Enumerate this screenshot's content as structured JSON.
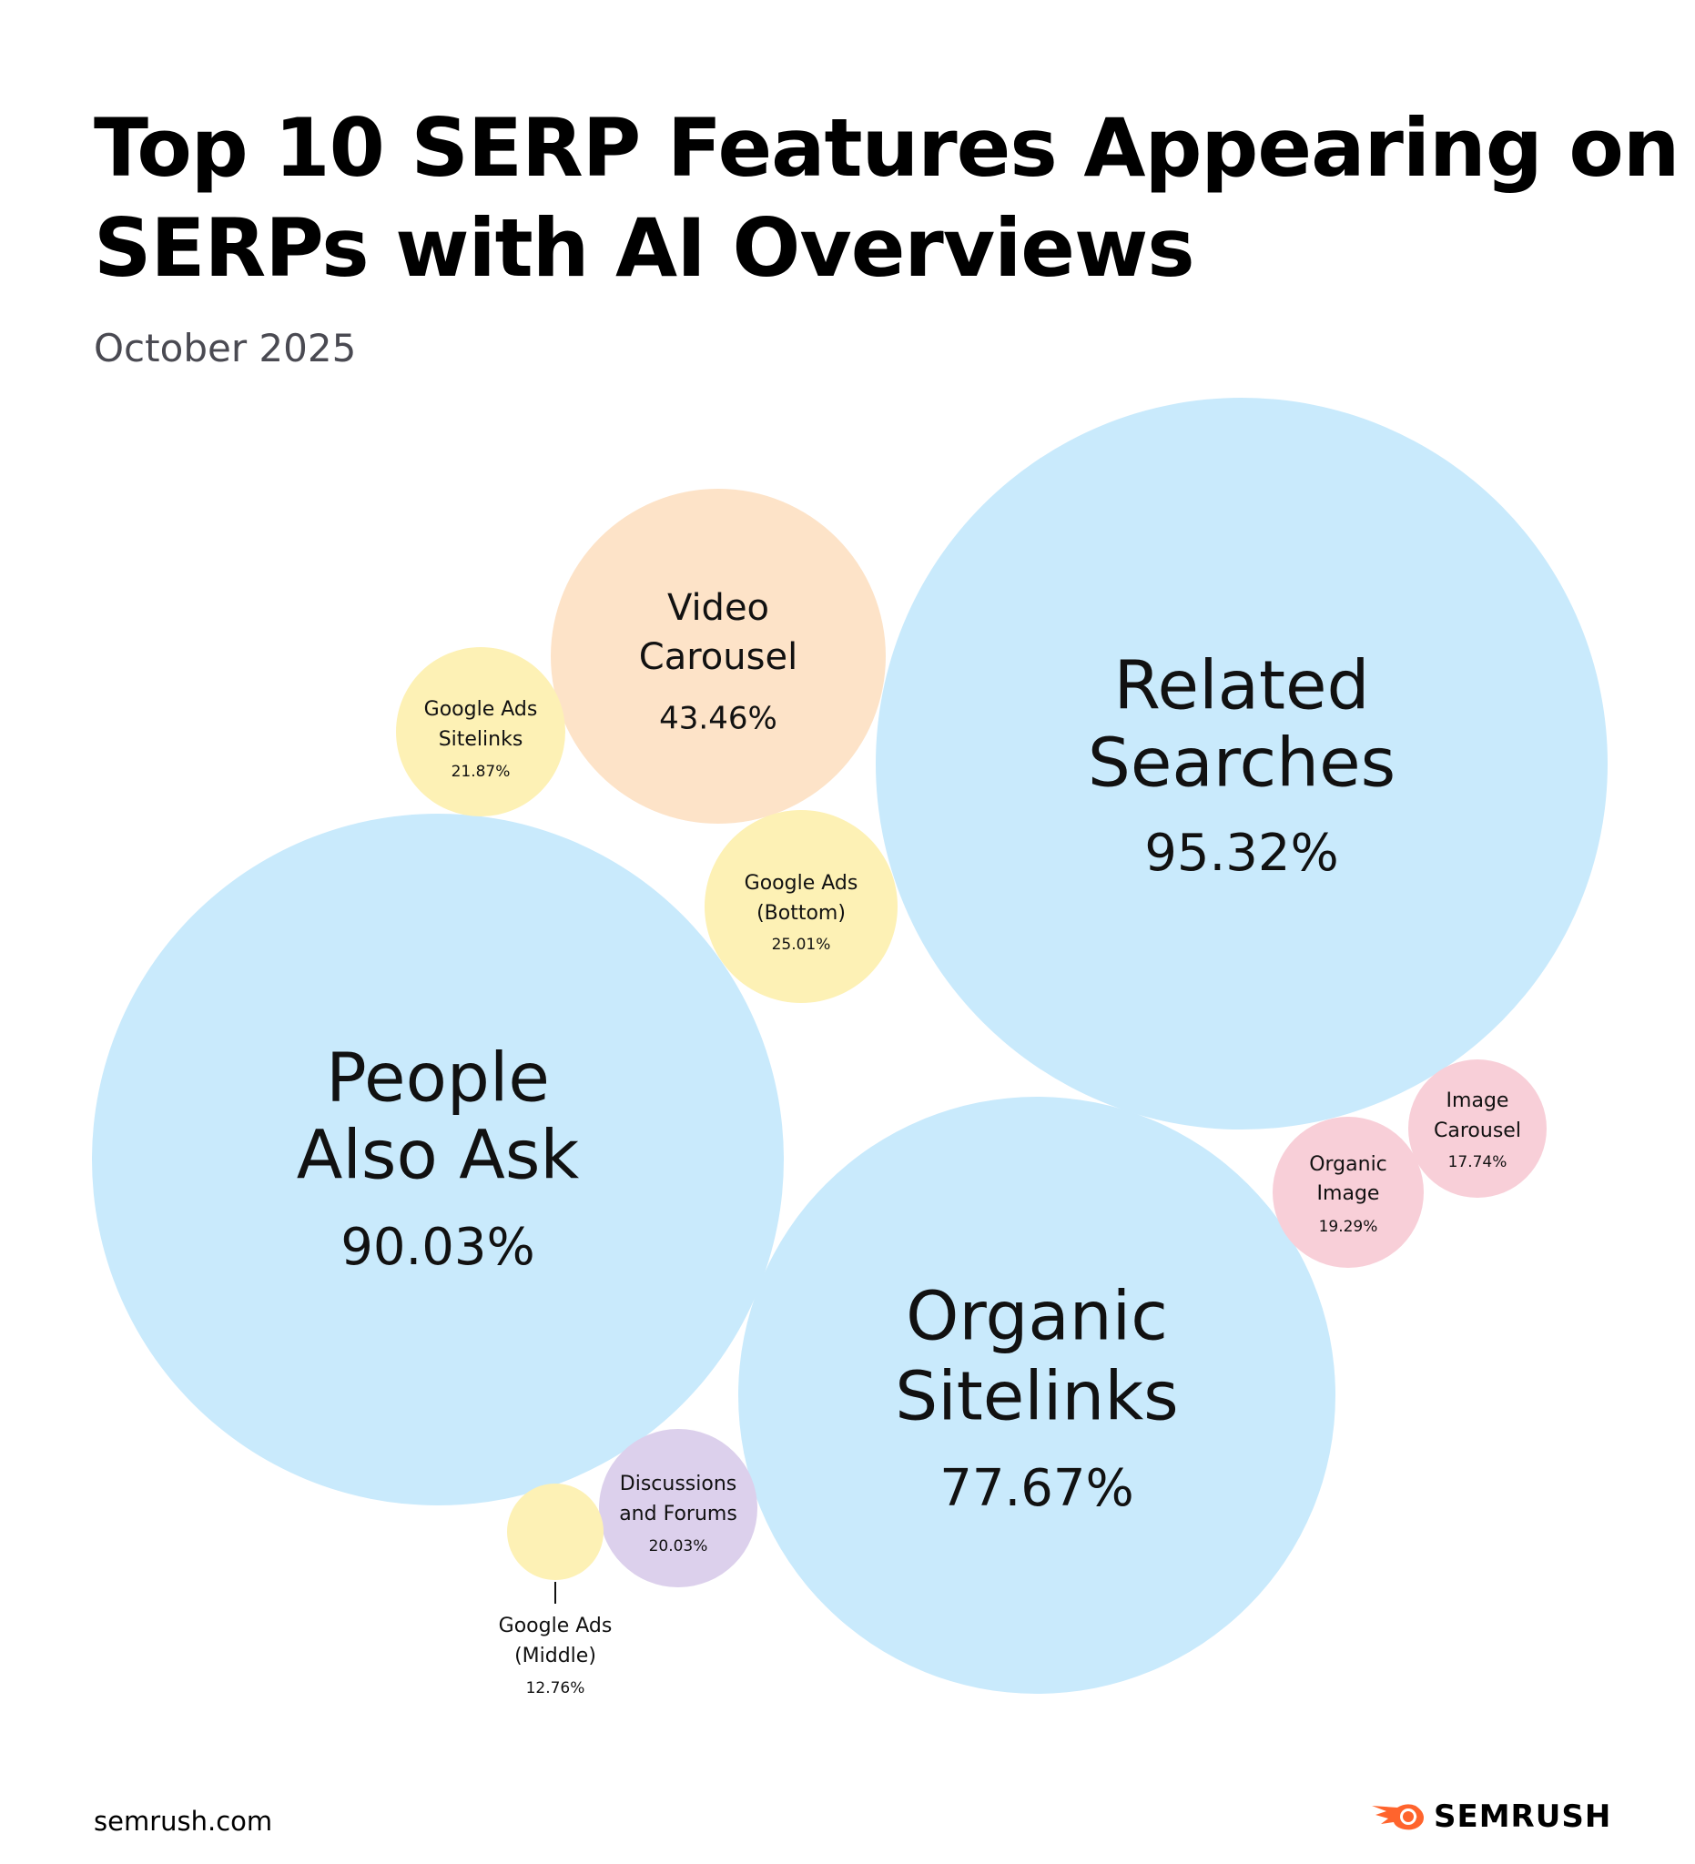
{
  "chart_data": {
    "type": "bubble",
    "title": "Top 10 SERP Features Appearing on SERPs with AI Overviews",
    "subtitle": "October 2025",
    "unit": "%",
    "series": [
      {
        "label": [
          "Related",
          "Searches"
        ],
        "value": 95.32,
        "display": "95.32%",
        "color": "#c9eafc"
      },
      {
        "label": [
          "People",
          "Also Ask"
        ],
        "value": 90.03,
        "display": "90.03%",
        "color": "#c9eafc"
      },
      {
        "label": [
          "Organic",
          "Sitelinks"
        ],
        "value": 77.67,
        "display": "77.67%",
        "color": "#c9eafc"
      },
      {
        "label": [
          "Video",
          "Carousel"
        ],
        "value": 43.46,
        "display": "43.46%",
        "color": "#fde3c8"
      },
      {
        "label": [
          "Google Ads",
          "(Bottom)"
        ],
        "value": 25.01,
        "display": "25.01%",
        "color": "#fdf1b5"
      },
      {
        "label": [
          "Google Ads",
          "Sitelinks"
        ],
        "value": 21.87,
        "display": "21.87%",
        "color": "#fdf1b5"
      },
      {
        "label": [
          "Discussions",
          "and Forums"
        ],
        "value": 20.03,
        "display": "20.03%",
        "color": "#dcd0ec"
      },
      {
        "label": [
          "Organic",
          "Image"
        ],
        "value": 19.29,
        "display": "19.29%",
        "color": "#f8cfd8"
      },
      {
        "label": [
          "Image",
          "Carousel"
        ],
        "value": 17.74,
        "display": "17.74%",
        "color": "#f8cfd8"
      },
      {
        "label": [
          "Google Ads",
          "(Middle)"
        ],
        "value": 12.76,
        "display": "12.76%",
        "color": "#fdf1b5"
      }
    ]
  },
  "footer": {
    "source": "semrush.com",
    "brand": "SEMRUSH",
    "brand_color": "#ff642d",
    "logo_icon": "semrush-fireball-icon"
  }
}
